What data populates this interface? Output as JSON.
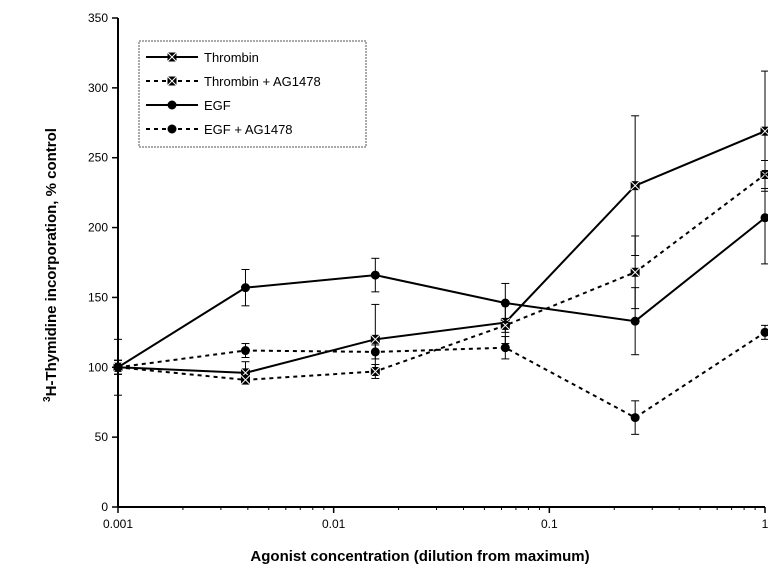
{
  "chart_data": {
    "type": "line",
    "xlabel": "Agonist concentration (dilution from maximum)",
    "ylabel_sup": "3",
    "ylabel": "H-Thymidine incorporation, % control",
    "xscale": "log",
    "xlim": [
      0.001,
      1
    ],
    "ylim": [
      0,
      350
    ],
    "yticks": [
      0,
      50,
      100,
      150,
      200,
      250,
      300,
      350
    ],
    "xticks": [
      0.001,
      0.01,
      0.1,
      1
    ],
    "xtick_labels": [
      "0.001",
      "0.01",
      "0.1",
      "1"
    ],
    "grid": false,
    "legend_position": "top-left",
    "x": [
      0.001,
      0.0039,
      0.0156,
      0.0625,
      0.25,
      1
    ],
    "series": [
      {
        "name": "Thrombin",
        "style": "solid",
        "marker": "square-x",
        "values": [
          100,
          96,
          120,
          132,
          230,
          269
        ],
        "errors": [
          5,
          8,
          25,
          15,
          50,
          43
        ]
      },
      {
        "name": "Thrombin + AG1478",
        "style": "dashed",
        "marker": "square-x",
        "values": [
          100,
          91,
          97,
          130,
          168,
          238
        ],
        "errors": [
          5,
          3,
          5,
          5,
          26,
          10
        ]
      },
      {
        "name": "EGF",
        "style": "solid",
        "marker": "circle",
        "values": [
          100,
          157,
          166,
          146,
          133,
          207
        ],
        "errors": [
          5,
          13,
          12,
          14,
          24,
          33
        ]
      },
      {
        "name": "EGF + AG1478",
        "style": "dashed",
        "marker": "circle",
        "values": [
          100,
          112,
          111,
          114,
          64,
          125
        ],
        "errors": [
          20,
          5,
          5,
          8,
          12,
          5
        ]
      }
    ]
  }
}
